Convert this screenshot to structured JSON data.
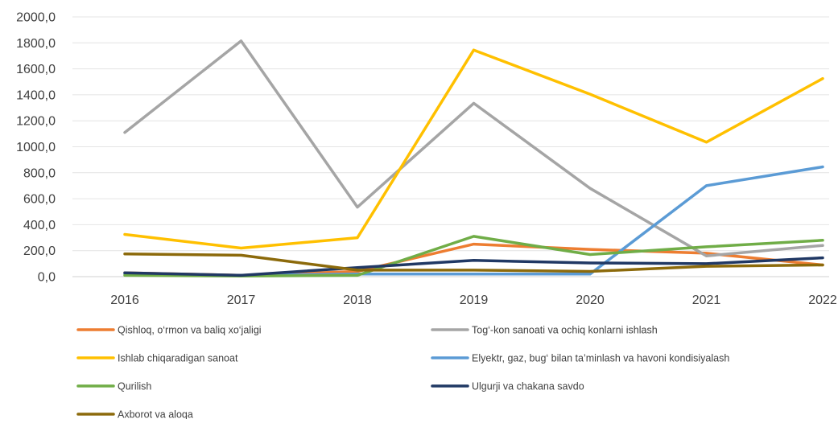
{
  "chart_data": {
    "type": "line",
    "title": "",
    "xlabel": "",
    "ylabel": "",
    "ylim": [
      0,
      2000
    ],
    "y_ticks": [
      "0,0",
      "200,0",
      "400,0",
      "600,0",
      "800,0",
      "1000,0",
      "1200,0",
      "1400,0",
      "1600,0",
      "1800,0",
      "2000,0"
    ],
    "grid": true,
    "legend_position": "bottom",
    "categories": [
      "2016",
      "2017",
      "2018",
      "2019",
      "2020",
      "2021",
      "2022"
    ],
    "series": [
      {
        "name": "Qishloq, o‘rmon va baliq xo‘jaligi",
        "color": "#ED7D31",
        "values": [
          30,
          10,
          40,
          250,
          210,
          180,
          90
        ]
      },
      {
        "name": "Tog‘-kon sanoati  va ochiq konlarni ishlash",
        "color": "#A5A5A5",
        "values": [
          1110,
          1815,
          535,
          1335,
          680,
          160,
          240
        ]
      },
      {
        "name": "Ishlab chiqaradigan sanoat",
        "color": "#FFC000",
        "values": [
          325,
          220,
          300,
          1745,
          1405,
          1035,
          1525
        ]
      },
      {
        "name": "Elyektr,  gaz, bug‘ bilan ta’minlash va havoni  kondisiyalash",
        "color": "#5B9BD5",
        "values": [
          20,
          10,
          20,
          20,
          20,
          700,
          845
        ]
      },
      {
        "name": "Qurilish",
        "color": "#70AD47",
        "values": [
          10,
          5,
          10,
          310,
          170,
          230,
          280
        ]
      },
      {
        "name": "Ulgurji va chakana savdo",
        "color": "#203864",
        "values": [
          30,
          10,
          70,
          125,
          105,
          100,
          145
        ]
      },
      {
        "name": "Axborot  va  aloqa",
        "color": "#8C6A0B",
        "values": [
          175,
          165,
          50,
          50,
          40,
          80,
          90
        ]
      }
    ]
  }
}
